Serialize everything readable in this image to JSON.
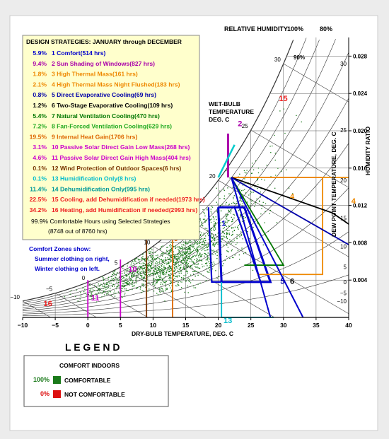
{
  "header": {
    "relative_humidity": "RELATIVE HUMIDITY",
    "rh_100": "100%",
    "rh_80": "80%"
  },
  "strategies": {
    "title": "DESIGN STRATEGIES:  JANUARY through DECEMBER",
    "items": [
      {
        "pct": "5.9%",
        "text": "1  Comfort(514 hrs)",
        "color": "#0000cc"
      },
      {
        "pct": "9.4%",
        "text": "2  Sun Shading of Windows(827 hrs)",
        "color": "#aa00aa"
      },
      {
        "pct": "1.8%",
        "text": "3  High Thermal Mass(161 hrs)",
        "color": "#ee8800"
      },
      {
        "pct": "2.1%",
        "text": "4  High Thermal Mass Night Flushed(183 hrs)",
        "color": "#ee8800"
      },
      {
        "pct": "0.8%",
        "text": "5  Direct Evaporative Cooling(69 hrs)",
        "color": "#0000aa"
      },
      {
        "pct": "1.2%",
        "text": "6  Two-Stage Evaporative Cooling(109 hrs)",
        "color": "#000000"
      },
      {
        "pct": "5.4%",
        "text": "7  Natural Ventilation Cooling(470 hrs)",
        "color": "#007700"
      },
      {
        "pct": "7.2%",
        "text": "8  Fan-Forced Ventilation Cooling(629 hrs)",
        "color": "#22aa22"
      },
      {
        "pct": "19.5%",
        "text": "9  Internal Heat Gain(1706 hrs)",
        "color": "#dd6600"
      },
      {
        "pct": "3.1%",
        "text": "10  Passive Solar Direct Gain Low Mass(268 hrs)",
        "color": "#cc00cc"
      },
      {
        "pct": "4.6%",
        "text": "11  Passive Solar Direct Gain High Mass(404 hrs)",
        "color": "#cc00cc"
      },
      {
        "pct": "0.1%",
        "text": "12  Wind Protection of Outdoor Spaces(6 hrs)",
        "color": "#773300"
      },
      {
        "pct": "0.1%",
        "text": "13  Humidification Only(8 hrs)",
        "color": "#00bbcc"
      },
      {
        "pct": "11.4%",
        "text": "14  Dehumidification Only(995 hrs)",
        "color": "#009999"
      },
      {
        "pct": "22.5%",
        "text": "15  Cooling, add Dehumidification if needed(1973 hrs)",
        "color": "#ee2222"
      },
      {
        "pct": "34.2%",
        "text": "16  Heating, add Humidification if needed(2993 hrs)",
        "color": "#ee2222"
      }
    ],
    "summary_line1": "99.9%  Comfortable Hours using Selected Strategies",
    "summary_line2": "(8748 out of 8760 hrs)",
    "comfort_zones_1": "Comfort Zones show:",
    "comfort_zones_2": "Summer clothing on right,",
    "comfort_zones_3": "Winter clothing on left."
  },
  "labels": {
    "wet_bulb_1": "WET-BULB",
    "wet_bulb_2": "TEMPERATURE",
    "wet_bulb_3": "DEG. C",
    "dew_point_axis": "DEW POINT TEMPERATURE, DEG. C",
    "humidity_ratio_axis": "HUMIDITY RATIO",
    "rh_90": "90%"
  },
  "legend": {
    "title": "L E G E N D",
    "heading": "COMFORT INDOORS",
    "items": [
      {
        "pct": "100%",
        "label": "COMFORTABLE",
        "color": "#1a7a1a",
        "pct_color": "#1a7a1a"
      },
      {
        "pct": "0%",
        "label": "NOT COMFORTABLE",
        "color": "#dd1111",
        "pct_color": "#dd1111"
      }
    ]
  },
  "chart_data": {
    "type": "scatter",
    "title": "",
    "xlabel": "DRY-BULB TEMPERATURE, DEG. C",
    "ylabel": "HUMIDITY RATIO",
    "xlim": [
      -10,
      40
    ],
    "ylim": [
      0,
      0.03
    ],
    "x_ticks": [
      -10,
      -5,
      0,
      5,
      10,
      15,
      20,
      25,
      30,
      35,
      40
    ],
    "y_ticks": [
      0.004,
      0.008,
      0.012,
      0.016,
      0.02,
      0.024,
      0.028
    ],
    "y_tick_labels": [
      "0.004",
      "0.008",
      "0.012",
      "0.016",
      "0.020",
      "0.024",
      "0.028"
    ],
    "rh_curves": [
      10,
      20,
      30,
      40,
      50,
      60,
      70,
      80,
      90,
      100
    ],
    "wet_bulb_labels": [
      -10,
      -5,
      0,
      5,
      10,
      15,
      20,
      25,
      30
    ],
    "dew_point_labels": [
      -10,
      -5,
      0,
      5,
      10,
      15,
      20,
      25,
      30
    ],
    "strategy_zone_labels": [
      {
        "id": "1",
        "x": 20.5,
        "y": 0.0098,
        "color": "#0000cc"
      },
      {
        "id": "2",
        "x": 23.0,
        "y": 0.0205,
        "color": "#aa00aa"
      },
      {
        "id": "4",
        "x": 40.4,
        "y": 0.0122,
        "color": "#ee8800"
      },
      {
        "id": "4",
        "x": 31.0,
        "y": 0.0127,
        "color": "#ee8800"
      },
      {
        "id": "5",
        "x": 29.5,
        "y": 0.0036,
        "color": "#0000aa"
      },
      {
        "id": "6",
        "x": 31.0,
        "y": 0.0036,
        "color": "#000000"
      },
      {
        "id": "9",
        "x": 13.2,
        "y": 0.0082,
        "color": "#dd6600"
      },
      {
        "id": "10",
        "x": 6.2,
        "y": 0.0049,
        "color": "#cc00cc"
      },
      {
        "id": "11",
        "x": 0.5,
        "y": 0.0018,
        "color": "#cc00cc"
      },
      {
        "id": "12",
        "x": 7.3,
        "y": 0.0095,
        "color": "#773300"
      },
      {
        "id": "13",
        "x": 20.8,
        "y": -0.0006,
        "color": "#00bbcc"
      },
      {
        "id": "15",
        "x": 29.3,
        "y": 0.0232,
        "color": "#ee2222"
      },
      {
        "id": "16",
        "x": -6.8,
        "y": 0.0012,
        "color": "#ee2222"
      }
    ],
    "point_count": 8760,
    "point_color": "#1a7a1a"
  }
}
